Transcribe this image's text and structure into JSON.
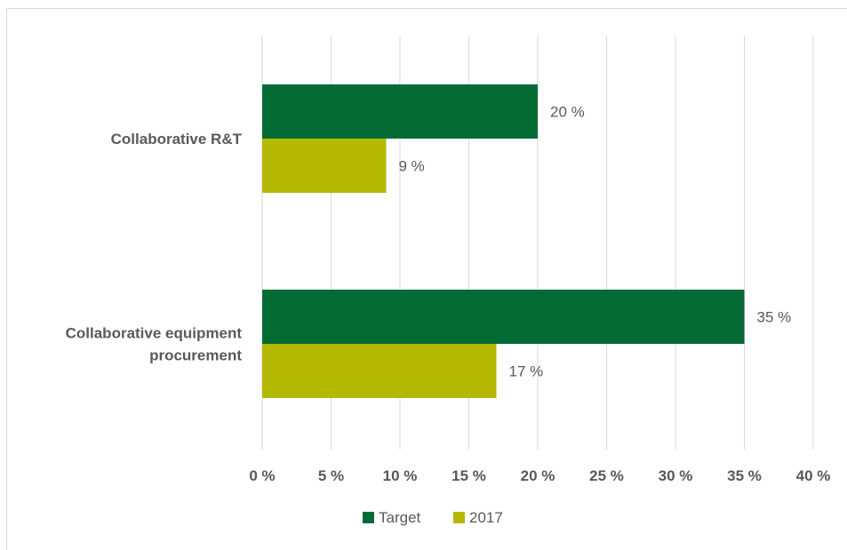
{
  "chart_data": {
    "type": "bar",
    "orientation": "horizontal",
    "categories": [
      [
        "Collaborative R&T"
      ],
      [
        "Collaborative equipment",
        "procurement"
      ]
    ],
    "series": [
      {
        "name": "Target",
        "values": [
          20,
          35
        ],
        "labels": [
          "20 %",
          "35 %"
        ],
        "color": "#056b34"
      },
      {
        "name": "2017",
        "values": [
          9,
          17
        ],
        "labels": [
          "9 %",
          "17 %"
        ],
        "color": "#b5b800"
      }
    ],
    "xlim": [
      0,
      40
    ],
    "xticks": [
      0,
      5,
      10,
      15,
      20,
      25,
      30,
      35,
      40
    ],
    "xtick_labels": [
      "0 %",
      "5 %",
      "10 %",
      "15 %",
      "20 %",
      "25 %",
      "30 %",
      "35 %",
      "40 %"
    ],
    "grid": true,
    "legend_position": "bottom",
    "gridline_color": "#d9d9d9",
    "text_color": "#595959"
  }
}
